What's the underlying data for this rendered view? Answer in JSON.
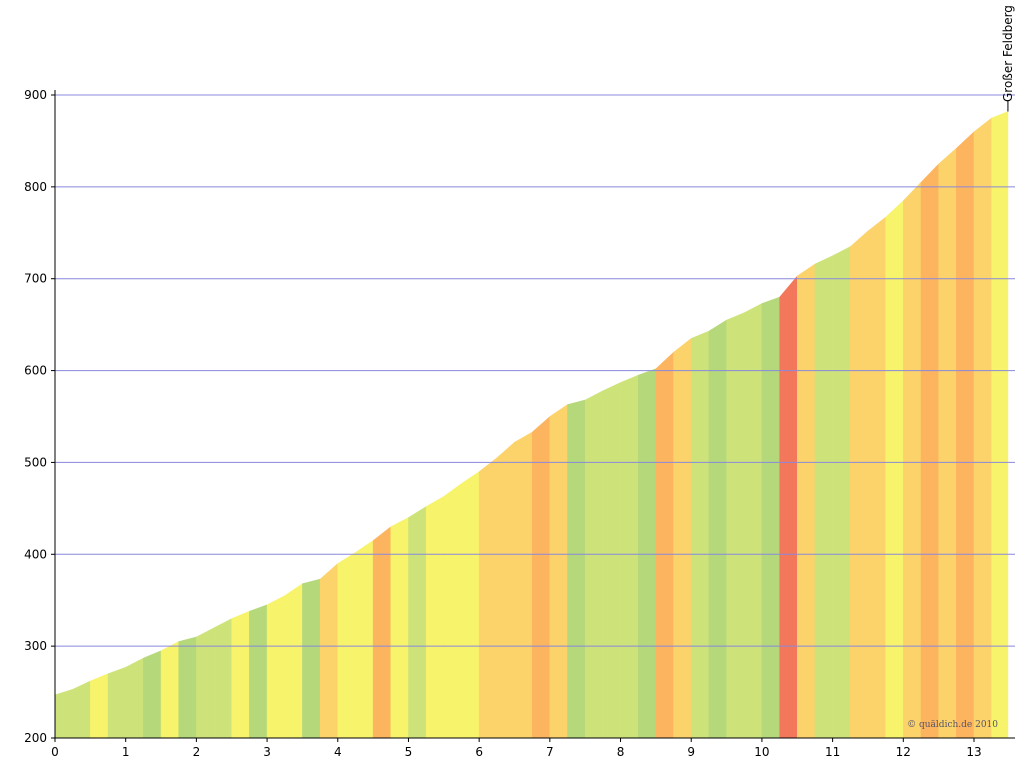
{
  "chart_data": {
    "type": "elevation-profile",
    "x": [
      0,
      0.25,
      0.5,
      0.75,
      1,
      1.25,
      1.5,
      1.75,
      2,
      2.25,
      2.5,
      2.75,
      3,
      3.25,
      3.5,
      3.75,
      4,
      4.25,
      4.5,
      4.75,
      5,
      5.25,
      5.5,
      5.75,
      6,
      6.25,
      6.5,
      6.75,
      7,
      7.25,
      7.5,
      7.75,
      8,
      8.25,
      8.5,
      8.75,
      9,
      9.25,
      9.5,
      9.75,
      10,
      10.25,
      10.5,
      10.75,
      11,
      11.25,
      11.5,
      11.75,
      12,
      12.25,
      12.5,
      12.75,
      13,
      13.25,
      13.48
    ],
    "series": [
      {
        "values": [
          247,
          253,
          262,
          270,
          277,
          287,
          295,
          305,
          310,
          320,
          330,
          338,
          345,
          355,
          368,
          373,
          390,
          402,
          415,
          430,
          440,
          452,
          463,
          477,
          490,
          505,
          522,
          533,
          550,
          563,
          568,
          578,
          587,
          595,
          602,
          620,
          635,
          643,
          655,
          663,
          673,
          680,
          703,
          716,
          725,
          735,
          752,
          767,
          785,
          805,
          825,
          842,
          860,
          875,
          882
        ],
        "segment_colors": [
          "#cde37a",
          "#cde37a",
          "#f7f36b",
          "#cde37a",
          "#cde37a",
          "#b5d87a",
          "#f7f36b",
          "#b5d87a",
          "#cde37a",
          "#cde37a",
          "#f7f36b",
          "#b5d87a",
          "#f7f36b",
          "#f7f36b",
          "#b5d87a",
          "#fcd36a",
          "#f7f36b",
          "#f7f36b",
          "#fdb45f",
          "#f7f36b",
          "#cde37a",
          "#f7f36b",
          "#f7f36b",
          "#f7f36b",
          "#fcd36a",
          "#fcd36a",
          "#fcd36a",
          "#fdb45f",
          "#fcd36a",
          "#b5d87a",
          "#cde37a",
          "#cde37a",
          "#cde37a",
          "#b5d87a",
          "#fdb45f",
          "#fcd36a",
          "#cde37a",
          "#b5d87a",
          "#cde37a",
          "#cde37a",
          "#b5d87a",
          "#f3775a",
          "#fcd36a",
          "#cde37a",
          "#cde37a",
          "#fcd36a",
          "#fcd36a",
          "#f7f36b",
          "#fcd36a",
          "#fdb45f",
          "#fcd36a",
          "#fdb45f",
          "#fcd36a",
          "#f7f36b"
        ]
      }
    ],
    "xlim": [
      0,
      13.58
    ],
    "xticks": [
      0,
      1,
      2,
      3,
      4,
      5,
      6,
      7,
      8,
      9,
      10,
      11,
      12,
      13
    ],
    "ylim": [
      200,
      900
    ],
    "yticks": [
      200,
      300,
      400,
      500,
      600,
      700,
      800,
      900
    ],
    "grid": true,
    "grid_color": "#8888dd",
    "summit": {
      "text": "Großer Feldberg",
      "x": 13.48
    },
    "credit": "© quäldich.de 2010"
  }
}
